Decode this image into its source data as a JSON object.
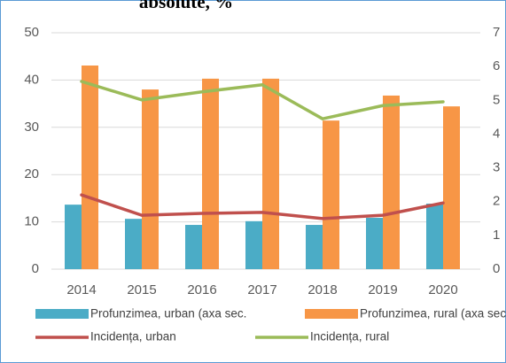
{
  "chart_data": {
    "type": "combo",
    "title": "absolute, %",
    "categories": [
      "2014",
      "2015",
      "2016",
      "2017",
      "2018",
      "2019",
      "2020"
    ],
    "ylim": [
      0,
      50
    ],
    "yticks": [
      0,
      10,
      20,
      30,
      40,
      50
    ],
    "y2lim": [
      0,
      7
    ],
    "y2ticks": [
      0,
      1,
      2,
      3,
      4,
      5,
      6,
      7
    ],
    "grid": true,
    "series": [
      {
        "name": "Profunzimea, urban (axa sec.",
        "type": "bar",
        "axis": "y2",
        "color": "#4bacc6",
        "values": [
          1.91,
          1.49,
          1.31,
          1.42,
          1.31,
          1.52,
          1.94
        ]
      },
      {
        "name": "Profunzimea, rural (axa sec.)",
        "type": "bar",
        "axis": "y2",
        "color": "#f79646",
        "values": [
          6.03,
          5.32,
          5.64,
          5.64,
          4.4,
          5.14,
          4.82
        ]
      },
      {
        "name": "Incidența, urban",
        "type": "line",
        "color": "#c0504d",
        "values": [
          15.7,
          11.4,
          11.8,
          12.0,
          10.7,
          11.4,
          14.0
        ]
      },
      {
        "name": "Incidența, rural",
        "type": "line",
        "color": "#9bbb59",
        "values": [
          39.7,
          35.8,
          37.5,
          39.0,
          31.8,
          34.6,
          35.4
        ]
      }
    ]
  }
}
